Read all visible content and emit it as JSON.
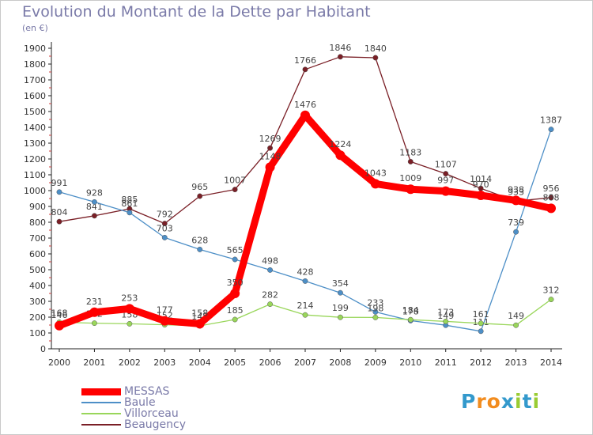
{
  "title": "Evolution du Montant de la Dette par Habitant",
  "unit": "(en €)",
  "brand": {
    "letters": [
      "P",
      "r",
      "o",
      "x",
      "i",
      "t",
      "i"
    ],
    "colors": [
      "#3399cc",
      "#f28c1e",
      "#f28c1e",
      "#3399cc",
      "#99cc33",
      "#3399cc",
      "#99cc33"
    ]
  },
  "chart_data": {
    "type": "line",
    "title": "Evolution du Montant de la Dette par Habitant",
    "ylabel": "(en €)",
    "xlabel": "",
    "ylim": [
      0,
      1900
    ],
    "yticks": [
      0,
      100,
      200,
      300,
      400,
      500,
      600,
      700,
      800,
      900,
      1000,
      1100,
      1200,
      1300,
      1400,
      1500,
      1600,
      1700,
      1800,
      1900
    ],
    "x": [
      "2000",
      "2001",
      "2002",
      "2003",
      "2004",
      "2005",
      "2006",
      "2007",
      "2008",
      "2009",
      "2010",
      "2011",
      "2012",
      "2013",
      "2014"
    ],
    "grid": false,
    "legend_placement": "bottom-left",
    "series": [
      {
        "name": "Beaugency",
        "color": "#7a1f26",
        "values": [
          804,
          841,
          885,
          792,
          965,
          1007,
          1269,
          1766,
          1846,
          1840,
          1183,
          1107,
          1014,
          933,
          956
        ]
      },
      {
        "name": "Baule",
        "color": "#4d8fc7",
        "values": [
          991,
          928,
          861,
          703,
          628,
          565,
          498,
          428,
          354,
          233,
          178,
          149,
          111,
          739,
          1387
        ]
      },
      {
        "name": "Villorceau",
        "color": "#99d65a",
        "values": [
          168,
          162,
          158,
          152,
          145,
          185,
          282,
          214,
          199,
          198,
          184,
          173,
          161,
          149,
          312
        ]
      },
      {
        "name": "MESSAS",
        "color": "#ff0000",
        "values": [
          146,
          231,
          253,
          177,
          158,
          350,
          1148,
          1476,
          1224,
          1043,
          1009,
          997,
          970,
          938,
          888
        ]
      }
    ]
  },
  "legend": [
    {
      "name": "MESSAS",
      "color": "#ff0000"
    },
    {
      "name": "Baule",
      "color": "#4d8fc7"
    },
    {
      "name": "Villorceau",
      "color": "#99d65a"
    },
    {
      "name": "Beaugency",
      "color": "#7a1f26"
    }
  ]
}
